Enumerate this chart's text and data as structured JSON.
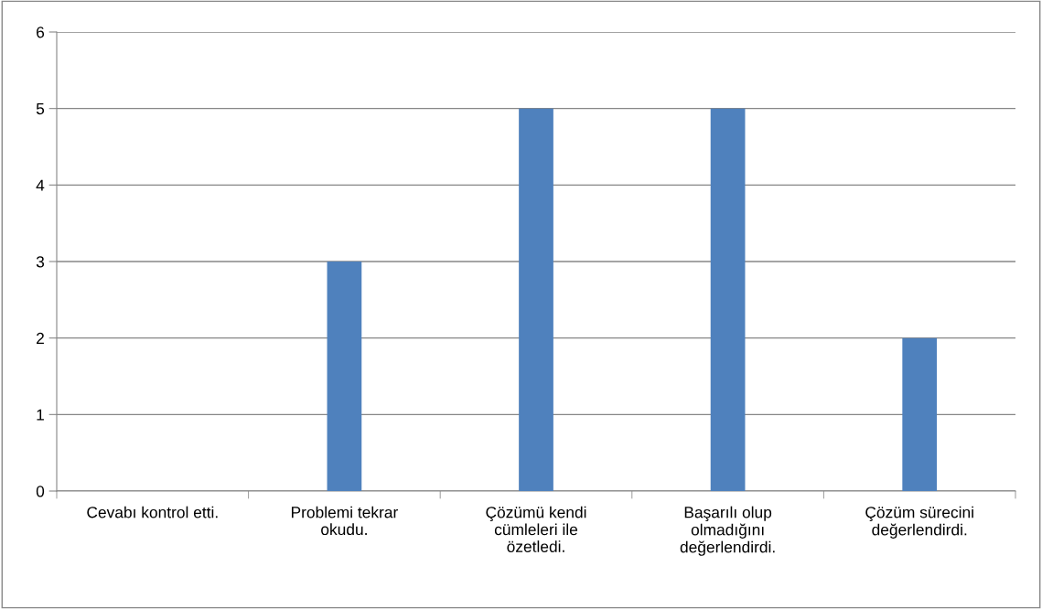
{
  "chart_data": {
    "type": "bar",
    "categories": [
      "Cevabı kontrol etti.",
      "Problemi tekrar\nokudu.",
      "Çözümü kendi\ncümleleri ile\nözetledi.",
      "Başarılı olup\nolmadığını\ndeğerlendirdi.",
      "Çözüm sürecini\ndeğerlendirdi."
    ],
    "values": [
      0,
      3,
      5,
      5,
      2
    ],
    "color": "#4f81bd",
    "ylim": [
      0,
      6
    ],
    "yticks": [
      0,
      1,
      2,
      3,
      4,
      5,
      6
    ],
    "grid": "y",
    "legend": false
  }
}
